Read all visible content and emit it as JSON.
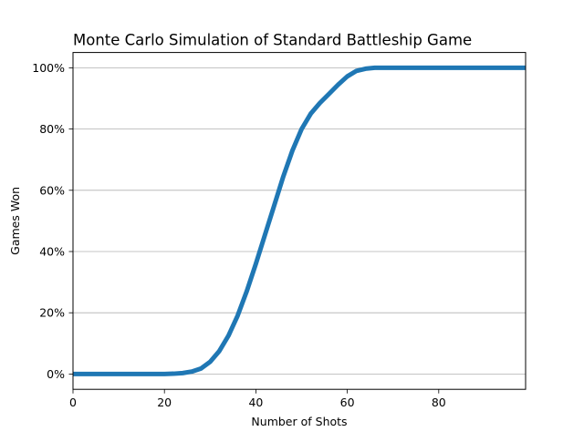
{
  "chart_data": {
    "type": "line",
    "title": "Monte Carlo Simulation of Standard Battleship Game",
    "xlabel": "Number of Shots",
    "ylabel": "Games Won",
    "xlim": [
      0,
      99
    ],
    "ylim": [
      -0.05,
      1.05
    ],
    "grid": "y-major",
    "x_ticks": [
      0,
      20,
      40,
      60,
      80
    ],
    "x_tick_labels": [
      "0",
      "20",
      "40",
      "60",
      "80"
    ],
    "y_ticks": [
      0,
      0.2,
      0.4,
      0.6,
      0.8,
      1.0
    ],
    "y_tick_labels": [
      "0%",
      "20%",
      "40%",
      "60%",
      "80%",
      "100%"
    ],
    "series": [
      {
        "color": "#1f77b4",
        "x": [
          0,
          10,
          20,
          22,
          24,
          26,
          28,
          30,
          32,
          34,
          36,
          38,
          40,
          42,
          44,
          46,
          48,
          50,
          52,
          54,
          56,
          58,
          60,
          62,
          64,
          66,
          68,
          70,
          80,
          90,
          99
        ],
        "y": [
          0,
          0,
          0,
          0.001,
          0.003,
          0.008,
          0.018,
          0.04,
          0.075,
          0.125,
          0.19,
          0.27,
          0.36,
          0.455,
          0.55,
          0.645,
          0.73,
          0.8,
          0.85,
          0.885,
          0.915,
          0.945,
          0.972,
          0.99,
          0.997,
          1.0,
          1.0,
          1.0,
          1.0,
          1.0,
          1.0
        ]
      }
    ]
  }
}
